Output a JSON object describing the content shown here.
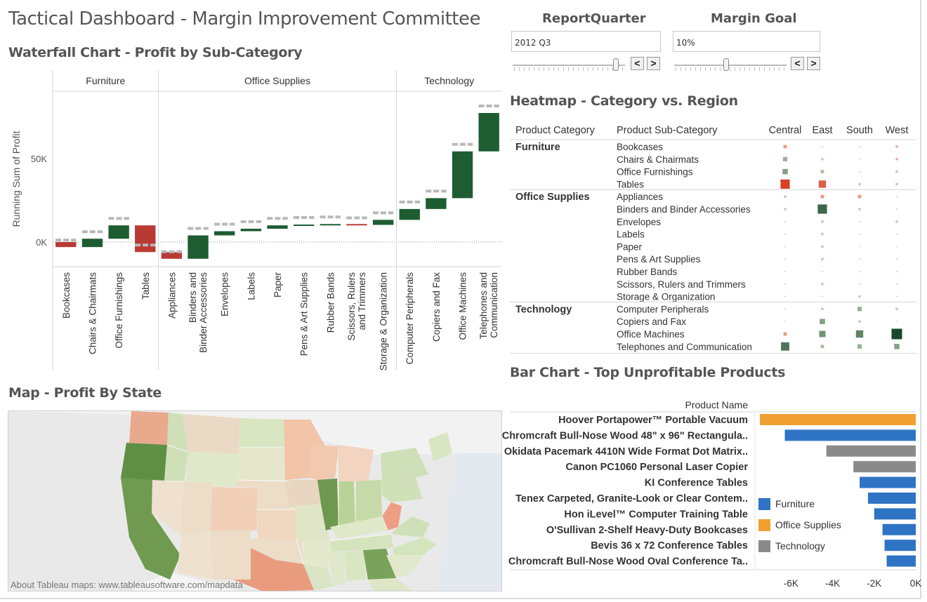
{
  "dashboard_title": "Tactical Dashboard - Margin Improvement Committee",
  "waterfall_title": "Waterfall Chart - Profit by Sub-Category",
  "heatmap_title": "Heatmap - Category vs. Region",
  "map_title": "Map - Profit By State",
  "bar_title": "Bar Chart - Top Unprofitable Products",
  "map_footer": "About Tableau maps: www.tableausoftware.com/mapdata",
  "params": {
    "quarter": {
      "title": "ReportQuarter",
      "value": "2012 Q3",
      "prev": "<",
      "next": ">"
    },
    "goal": {
      "title": "Margin Goal",
      "value": "10%",
      "prev": "<",
      "next": ">"
    }
  },
  "colors": {
    "positive": "#1e5c32",
    "negative": "#b93a32",
    "total_marker": "#b8b8b8",
    "furniture": "#2f74c4",
    "office_supplies": "#f0a030",
    "technology": "#8a8a8a"
  },
  "chart_data": [
    {
      "type": "bar",
      "subtype": "waterfall",
      "ylabel": "Running Sum of Profit",
      "y_ticks": [
        "0K",
        "50K"
      ],
      "ylim": [
        -15000,
        90000
      ],
      "groups": [
        {
          "name": "Furniture",
          "categories": [
            "Bookcases",
            "Chairs & Chairmats",
            "Office Furnishings",
            "Tables"
          ]
        },
        {
          "name": "Office Supplies",
          "categories": [
            "Appliances",
            "Binders and Binder Accessories",
            "Envelopes",
            "Labels",
            "Paper",
            "Pens & Art Supplies",
            "Rubber Bands",
            "Scissors, Rulers and Trimmers",
            "Storage & Organization"
          ]
        },
        {
          "name": "Technology",
          "categories": [
            "Computer Peripherals",
            "Copiers and Fax",
            "Office Machines",
            "Telephones and Communication"
          ]
        }
      ],
      "values": [
        -3000,
        5000,
        8000,
        -16000,
        -4000,
        14000,
        2500,
        1500,
        2000,
        500,
        300,
        -500,
        3000,
        6500,
        6500,
        28000,
        23000
      ]
    },
    {
      "type": "heatmap",
      "headers": {
        "category": "Product Category",
        "subcategory": "Product Sub-Category"
      },
      "regions": [
        "Central",
        "East",
        "South",
        "West"
      ],
      "groups": [
        {
          "name": "Furniture",
          "rows": [
            {
              "name": "Bookcases",
              "values": [
                -2,
                0,
                0,
                -1
              ]
            },
            {
              "name": "Chairs & Chairmats",
              "values": [
                3,
                1,
                0,
                -1
              ]
            },
            {
              "name": "Office Furnishings",
              "values": [
                4,
                2,
                0,
                1
              ]
            },
            {
              "name": "Tables",
              "values": [
                -8,
                -6,
                1,
                1
              ]
            }
          ]
        },
        {
          "name": "Office Supplies",
          "rows": [
            {
              "name": "Appliances",
              "values": [
                1,
                -2,
                -2,
                0
              ]
            },
            {
              "name": "Binders and Binder Accessories",
              "values": [
                1,
                8,
                1,
                0
              ]
            },
            {
              "name": "Envelopes",
              "values": [
                0,
                1,
                0,
                1
              ]
            },
            {
              "name": "Labels",
              "values": [
                0,
                1,
                0,
                0
              ]
            },
            {
              "name": "Paper",
              "values": [
                0,
                1,
                0,
                0
              ]
            },
            {
              "name": "Pens & Art Supplies",
              "values": [
                0,
                1,
                0,
                0
              ]
            },
            {
              "name": "Rubber Bands",
              "values": [
                0,
                0,
                0,
                0
              ]
            },
            {
              "name": "Scissors, Rulers and Trimmers",
              "values": [
                0,
                1,
                0,
                0
              ]
            },
            {
              "name": "Storage & Organization",
              "values": [
                0,
                0,
                1,
                0
              ]
            }
          ]
        },
        {
          "name": "Technology",
          "rows": [
            {
              "name": "Computer Peripherals",
              "values": [
                0,
                1,
                3,
                1
              ]
            },
            {
              "name": "Copiers and Fax",
              "values": [
                0,
                4,
                1,
                0
              ]
            },
            {
              "name": "Office Machines",
              "values": [
                -2,
                5,
                6,
                10
              ]
            },
            {
              "name": "Telephones and Communication",
              "values": [
                7,
                2,
                3,
                4
              ]
            }
          ]
        }
      ]
    },
    {
      "type": "bar",
      "orientation": "horizontal",
      "ylabel": "Product Name",
      "x_ticks": [
        "-6K",
        "-4K",
        "-2K",
        "0K"
      ],
      "xlim": [
        -7500,
        0
      ],
      "legend": {
        "position": "right",
        "entries": [
          "Furniture",
          "Office Supplies",
          "Technology"
        ]
      },
      "categories": [
        "Hoover Portapower™ Portable Vacuum",
        "Chromcraft Bull-Nose Wood 48\" x 96\" Rectangula..",
        "Okidata Pacemark 4410N Wide Format Dot Matrix..",
        "Canon PC1060 Personal Laser Copier",
        "KI Conference Tables",
        "Tenex Carpeted, Granite-Look or Clear Contem..",
        "Hon iLevel™ Computer Training Table",
        "O'Sullivan 2-Shelf Heavy-Duty Bookcases",
        "Bevis 36 x 72 Conference Tables",
        "Chromcraft Bull-Nose Wood Oval Conference Ta.."
      ],
      "values": [
        -7500,
        -6300,
        -4300,
        -3000,
        -2700,
        -2300,
        -2000,
        -1600,
        -1500,
        -1400
      ],
      "segment": [
        "Office Supplies",
        "Furniture",
        "Technology",
        "Technology",
        "Furniture",
        "Furniture",
        "Furniture",
        "Furniture",
        "Furniture",
        "Furniture"
      ]
    },
    {
      "type": "map",
      "region": "United States",
      "measure": "Profit"
    }
  ]
}
